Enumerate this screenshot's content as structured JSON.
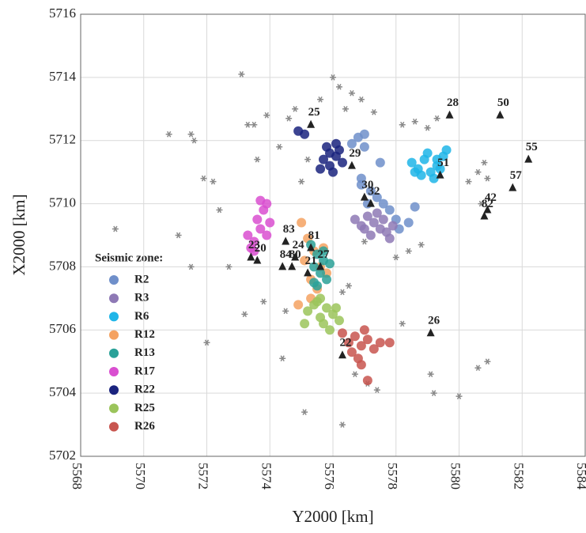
{
  "chart_data": {
    "type": "scatter",
    "x_label": "Y2000 [km]",
    "y_label": "X2000 [km]",
    "xlim": [
      5568,
      5584
    ],
    "xticks": [
      5568,
      5570,
      5572,
      5574,
      5576,
      5578,
      5580,
      5582,
      5584
    ],
    "ylim": [
      5702,
      5716
    ],
    "yticks": [
      5702,
      5704,
      5706,
      5708,
      5710,
      5712,
      5714,
      5716
    ],
    "grid": true,
    "legend_title": "Seismic zone:",
    "legend_position": "lower left",
    "series": [
      {
        "marker": "star",
        "color": "#8a8a8a",
        "x": [
          5569.1,
          5570.8,
          5571.5,
          5571.6,
          5571.9,
          5572.2,
          5572.4,
          5571.1,
          5571.5,
          5572.7,
          5573.1,
          5573.3,
          5573.6,
          5573.9,
          5573.5,
          5574.3,
          5574.6,
          5574.8,
          5575.2,
          5575.6,
          5576.0,
          5576.2,
          5576.4,
          5576.6,
          5576.9,
          5577.3,
          5577.0,
          5576.5,
          5576.3,
          5576.7,
          5577.1,
          5578.2,
          5578.6,
          5579.0,
          5579.3,
          5580.3,
          5580.6,
          5580.8,
          5580.9,
          5580.7,
          5578.4,
          5578.8,
          5578.0,
          5580.6,
          5580.9,
          5579.1,
          5579.2,
          5580.0,
          5573.8,
          5574.5,
          5575.0,
          5576.3,
          5575.1,
          5573.2,
          5572.0,
          5574.4,
          5577.4,
          5578.2
        ],
        "values": [
          5709.2,
          5712.2,
          5712.2,
          5712.0,
          5710.8,
          5710.7,
          5709.8,
          5709.0,
          5708.0,
          5708.0,
          5714.1,
          5712.5,
          5711.4,
          5712.8,
          5712.5,
          5711.8,
          5712.7,
          5713.0,
          5711.4,
          5713.3,
          5714.0,
          5713.7,
          5713.0,
          5713.5,
          5713.3,
          5712.9,
          5708.8,
          5707.4,
          5707.2,
          5704.6,
          5704.3,
          5712.5,
          5712.6,
          5712.4,
          5712.7,
          5710.7,
          5711.0,
          5711.3,
          5710.8,
          5710.0,
          5708.5,
          5708.7,
          5708.3,
          5704.8,
          5705.0,
          5704.6,
          5704.0,
          5703.9,
          5706.9,
          5706.6,
          5710.7,
          5703.0,
          5703.4,
          5706.5,
          5705.6,
          5705.1,
          5704.1,
          5706.2
        ]
      },
      {
        "name": "R2",
        "marker": "circle",
        "color": "#6f8fca",
        "x": [
          5576.6,
          5576.8,
          5577.0,
          5576.9,
          5577.2,
          5577.4,
          5577.6,
          5577.8,
          5578.0,
          5578.4,
          5576.9,
          5577.1,
          5577.5,
          5578.1,
          5578.6,
          5577.0
        ],
        "values": [
          5711.9,
          5712.1,
          5711.8,
          5710.6,
          5710.4,
          5710.2,
          5710.0,
          5709.8,
          5709.5,
          5709.4,
          5710.8,
          5710.0,
          5711.3,
          5709.2,
          5709.9,
          5712.2
        ]
      },
      {
        "name": "R3",
        "marker": "circle",
        "color": "#8e79b5",
        "x": [
          5576.7,
          5576.9,
          5577.1,
          5577.3,
          5577.5,
          5577.7,
          5577.9,
          5577.2,
          5577.6,
          5577.4,
          5577.8,
          5577.0
        ],
        "values": [
          5709.5,
          5709.3,
          5709.6,
          5709.4,
          5709.2,
          5709.1,
          5709.3,
          5709.0,
          5709.5,
          5709.7,
          5708.9,
          5709.2
        ]
      },
      {
        "name": "R6",
        "marker": "circle",
        "color": "#1fb5e8",
        "x": [
          5578.5,
          5578.7,
          5578.9,
          5579.1,
          5579.3,
          5579.5,
          5578.8,
          5579.0,
          5579.2,
          5579.4,
          5578.6,
          5579.6,
          5579.3
        ],
        "values": [
          5711.3,
          5711.1,
          5711.4,
          5711.0,
          5711.2,
          5711.5,
          5710.9,
          5711.6,
          5710.8,
          5711.1,
          5711.0,
          5711.7,
          5711.4
        ]
      },
      {
        "name": "R12",
        "marker": "circle",
        "color": "#f4a261",
        "x": [
          5575.0,
          5575.2,
          5575.4,
          5575.6,
          5575.3,
          5575.5,
          5575.8,
          5575.1,
          5574.9,
          5575.7,
          5575.3
        ],
        "values": [
          5709.4,
          5708.9,
          5708.5,
          5708.0,
          5707.6,
          5707.3,
          5707.8,
          5708.2,
          5706.8,
          5708.6,
          5707.0
        ]
      },
      {
        "name": "R13",
        "marker": "circle",
        "color": "#2aa198",
        "x": [
          5575.3,
          5575.5,
          5575.7,
          5575.4,
          5575.6,
          5575.8,
          5575.5,
          5575.7,
          5575.9,
          5575.4
        ],
        "values": [
          5708.7,
          5708.4,
          5708.2,
          5708.0,
          5707.8,
          5707.6,
          5707.4,
          5708.5,
          5708.1,
          5707.5
        ]
      },
      {
        "name": "R17",
        "marker": "circle",
        "color": "#d94fd0",
        "x": [
          5573.3,
          5573.5,
          5573.7,
          5573.9,
          5573.6,
          5573.8,
          5574.0,
          5573.4,
          5573.7,
          5573.5,
          5573.9
        ],
        "values": [
          5709.0,
          5708.8,
          5709.2,
          5709.0,
          5709.5,
          5709.8,
          5709.4,
          5708.6,
          5710.1,
          5708.5,
          5710.0
        ]
      },
      {
        "name": "R22",
        "marker": "circle",
        "color": "#1a237e",
        "x": [
          5575.7,
          5575.9,
          5576.1,
          5576.3,
          5575.8,
          5576.0,
          5576.2,
          5575.6,
          5576.1,
          5575.9,
          5574.9,
          5575.1
        ],
        "values": [
          5711.4,
          5711.2,
          5711.5,
          5711.3,
          5711.8,
          5711.0,
          5711.7,
          5711.1,
          5711.9,
          5711.6,
          5712.3,
          5712.2
        ]
      },
      {
        "name": "R25",
        "marker": "circle",
        "color": "#9bc45b",
        "x": [
          5575.2,
          5575.4,
          5575.6,
          5575.8,
          5576.0,
          5576.2,
          5575.5,
          5575.7,
          5575.9,
          5575.1,
          5575.6,
          5576.1
        ],
        "values": [
          5706.6,
          5706.8,
          5706.4,
          5706.7,
          5706.5,
          5706.3,
          5706.9,
          5706.2,
          5706.0,
          5706.2,
          5707.0,
          5706.7
        ]
      },
      {
        "name": "R26",
        "marker": "circle",
        "color": "#c8554f",
        "x": [
          5576.3,
          5576.5,
          5576.7,
          5576.9,
          5577.1,
          5577.3,
          5576.8,
          5577.0,
          5576.6,
          5577.5,
          5577.8,
          5576.9,
          5577.1
        ],
        "values": [
          5705.9,
          5705.6,
          5705.8,
          5705.5,
          5705.7,
          5705.4,
          5705.1,
          5706.0,
          5705.3,
          5705.6,
          5705.6,
          5704.9,
          5704.4
        ]
      },
      {
        "marker": "triangle",
        "color": "#222222",
        "x": [
          5575.3,
          5579.7,
          5581.3,
          5582.2,
          5576.6,
          5579.4,
          5581.7,
          5577.0,
          5577.2,
          5580.9,
          5580.8,
          5574.5,
          5575.3,
          5574.8,
          5575.6,
          5573.4,
          5573.6,
          5574.4,
          5574.7,
          5575.2,
          5579.1,
          5576.3
        ],
        "values": [
          5712.5,
          5712.8,
          5712.8,
          5711.4,
          5711.2,
          5710.9,
          5710.5,
          5710.2,
          5710.0,
          5709.8,
          5709.6,
          5708.8,
          5708.6,
          5708.3,
          5708.0,
          5708.3,
          5708.2,
          5708.0,
          5708.0,
          5707.8,
          5705.9,
          5705.2
        ],
        "point_labels": [
          "25",
          "28",
          "50",
          "55",
          "29",
          "51",
          "57",
          "30",
          "32",
          "42",
          "82",
          "83",
          "81",
          "24",
          "27",
          "23",
          "20",
          "84",
          "80",
          "21",
          "26",
          "22"
        ]
      }
    ]
  }
}
